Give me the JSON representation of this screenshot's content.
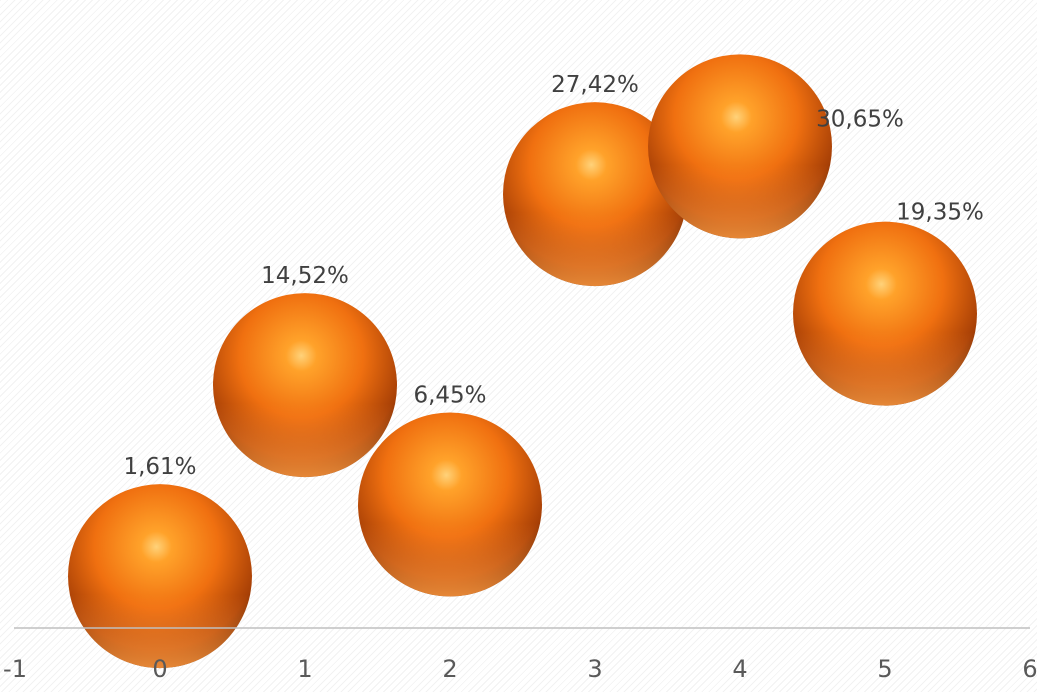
{
  "chart_data": {
    "type": "bubble",
    "x": [
      0,
      1,
      2,
      3,
      4,
      5
    ],
    "y": [
      1.61,
      14.52,
      6.45,
      27.42,
      30.65,
      19.35
    ],
    "labels": [
      "1,61%",
      "14,52%",
      "6,45%",
      "27,42%",
      "30,65%",
      "19,35%"
    ],
    "xticks": [
      "-1",
      "0",
      "1",
      "2",
      "3",
      "4",
      "5",
      "6"
    ],
    "xlim": [
      -1,
      6
    ],
    "grid": false,
    "legend": "none",
    "colors": {
      "bubble": "#f07010",
      "bubble_light": "#ffd27a",
      "bubble_dark": "#3a1200",
      "axis": "#bfbfbf",
      "label": "#404040",
      "tick": "#595959"
    }
  }
}
